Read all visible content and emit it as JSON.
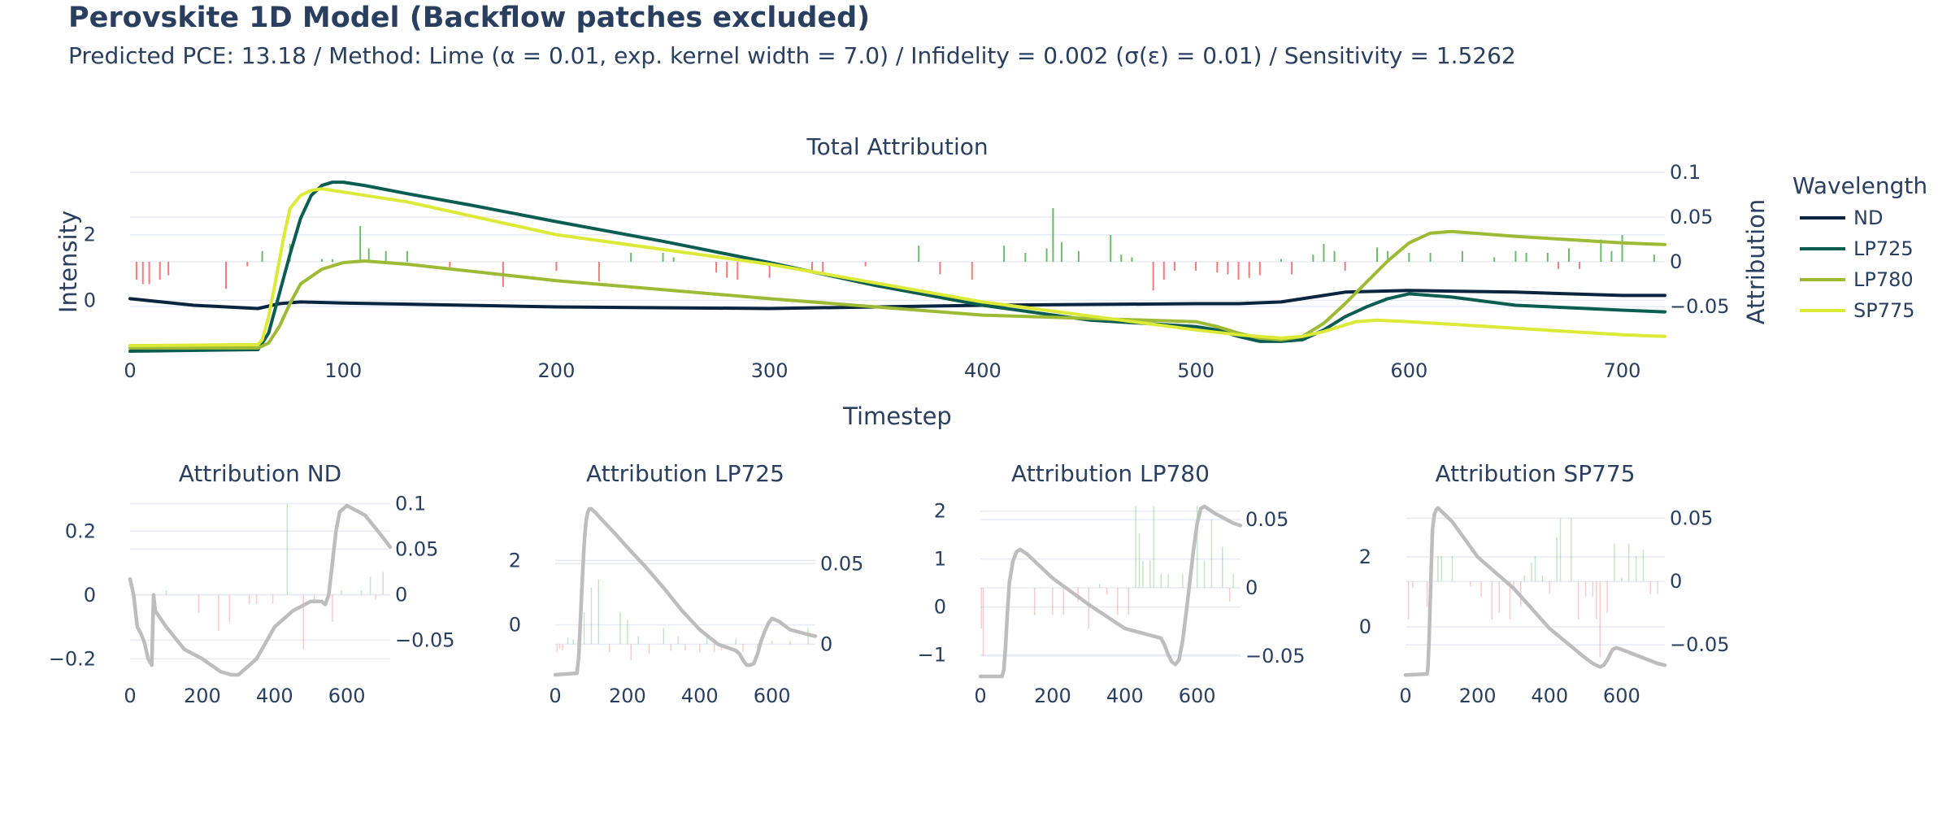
{
  "title": "Perovskite 1D Model (Backflow patches excluded)",
  "subtitle": "Predicted PCE: 13.18 / Method: Lime (α = 0.01, exp. kernel width = 7.0) / Infidelity = 0.002 (σ(ε) = 0.01) / Sensitivity = 1.5262",
  "colors": {
    "ND": "#0a2540",
    "LP725": "#0b5d52",
    "LP780": "#9dba35",
    "SP775": "#dcea37",
    "positive_attr": "#5cb35c",
    "negative_attr": "#f26b6b",
    "overlay_line": "#bdbdbd",
    "grid": "#e6ebf3"
  },
  "chart_data": [
    {
      "type": "line",
      "id": "main",
      "title": "Total Attribution",
      "xlabel": "Timestep",
      "ylabel": "Intensity",
      "y2label": "Attribution",
      "xlim": [
        0,
        720
      ],
      "ylim": [
        -1.55,
        3.9
      ],
      "y2lim": [
        -0.1,
        0.1
      ],
      "xticks": [
        0,
        100,
        200,
        300,
        400,
        500,
        600,
        700
      ],
      "yticks": [
        0,
        2
      ],
      "y2ticks": [
        -0.05,
        0,
        0.05,
        0.1
      ],
      "legend_title": "Wavelength",
      "legend_position": "right",
      "series": [
        {
          "name": "ND",
          "x": [
            0,
            30,
            60,
            70,
            80,
            100,
            200,
            300,
            400,
            500,
            520,
            540,
            550,
            570,
            600,
            650,
            700,
            720
          ],
          "y": [
            0.05,
            -0.15,
            -0.25,
            -0.1,
            -0.05,
            -0.08,
            -0.2,
            -0.25,
            -0.15,
            -0.1,
            -0.1,
            -0.05,
            0.05,
            0.25,
            0.3,
            0.25,
            0.15,
            0.15
          ]
        },
        {
          "name": "LP725",
          "x": [
            0,
            60,
            65,
            70,
            75,
            80,
            85,
            90,
            95,
            100,
            110,
            130,
            160,
            200,
            250,
            300,
            350,
            400,
            450,
            500,
            510,
            520,
            530,
            540,
            550,
            560,
            570,
            580,
            590,
            600,
            620,
            650,
            700,
            720
          ],
          "y": [
            -1.55,
            -1.5,
            -1.0,
            0.2,
            1.4,
            2.5,
            3.2,
            3.5,
            3.6,
            3.6,
            3.5,
            3.25,
            2.9,
            2.4,
            1.8,
            1.15,
            0.45,
            -0.15,
            -0.6,
            -0.8,
            -0.9,
            -1.1,
            -1.25,
            -1.25,
            -1.2,
            -0.9,
            -0.5,
            -0.2,
            0.05,
            0.2,
            0.1,
            -0.15,
            -0.3,
            -0.35
          ]
        },
        {
          "name": "LP780",
          "x": [
            0,
            60,
            65,
            70,
            75,
            80,
            90,
            100,
            110,
            130,
            200,
            300,
            400,
            500,
            510,
            520,
            530,
            540,
            550,
            560,
            570,
            580,
            590,
            600,
            610,
            620,
            650,
            700,
            720
          ],
          "y": [
            -1.45,
            -1.45,
            -1.3,
            -0.8,
            -0.1,
            0.5,
            0.95,
            1.15,
            1.2,
            1.1,
            0.6,
            0.05,
            -0.45,
            -0.65,
            -0.8,
            -1.0,
            -1.15,
            -1.2,
            -1.1,
            -0.7,
            -0.1,
            0.55,
            1.2,
            1.75,
            2.05,
            2.1,
            1.95,
            1.75,
            1.7
          ]
        },
        {
          "name": "SP775",
          "x": [
            0,
            60,
            62,
            65,
            68,
            70,
            72,
            75,
            80,
            85,
            90,
            100,
            130,
            200,
            300,
            400,
            500,
            520,
            540,
            550,
            560,
            570,
            575,
            585,
            600,
            650,
            700,
            720
          ],
          "y": [
            -1.38,
            -1.35,
            -1.2,
            -0.5,
            0.5,
            1.2,
            1.9,
            2.8,
            3.2,
            3.35,
            3.4,
            3.3,
            3.0,
            2.0,
            1.1,
            -0.05,
            -0.9,
            -1.05,
            -1.15,
            -1.1,
            -0.95,
            -0.75,
            -0.65,
            -0.6,
            -0.65,
            -0.85,
            -1.05,
            -1.1
          ]
        }
      ],
      "attribution_bars": {
        "x": [
          3,
          6,
          9,
          14,
          18,
          45,
          55,
          62,
          75,
          90,
          95,
          108,
          112,
          120,
          130,
          150,
          175,
          200,
          220,
          235,
          250,
          255,
          275,
          280,
          285,
          300,
          320,
          325,
          345,
          370,
          380,
          395,
          410,
          420,
          430,
          433,
          437,
          445,
          460,
          465,
          470,
          480,
          485,
          490,
          500,
          510,
          515,
          520,
          525,
          530,
          540,
          545,
          555,
          560,
          565,
          570,
          585,
          590,
          600,
          610,
          625,
          640,
          650,
          655,
          665,
          670,
          675,
          680,
          690,
          695,
          700,
          715
        ],
        "y": [
          -0.02,
          -0.025,
          -0.025,
          -0.02,
          -0.015,
          -0.03,
          -0.005,
          0.012,
          0.02,
          0.003,
          0.003,
          0.04,
          0.015,
          0.012,
          0.012,
          -0.006,
          -0.028,
          -0.01,
          -0.022,
          0.01,
          0.01,
          0.005,
          -0.012,
          -0.018,
          -0.02,
          -0.018,
          -0.012,
          -0.015,
          -0.005,
          0.018,
          -0.014,
          -0.02,
          0.018,
          0.01,
          0.015,
          0.06,
          0.022,
          0.012,
          0.03,
          0.008,
          0.005,
          -0.032,
          -0.02,
          -0.01,
          -0.01,
          -0.012,
          -0.014,
          -0.02,
          -0.018,
          -0.015,
          0.003,
          -0.014,
          0.008,
          0.02,
          0.012,
          -0.01,
          0.016,
          0.012,
          0.01,
          0.01,
          0.012,
          0.005,
          0.012,
          0.01,
          0.01,
          -0.008,
          0.015,
          -0.008,
          0.025,
          0.012,
          0.03,
          0.008
        ]
      }
    },
    {
      "type": "line",
      "id": "nd",
      "title": "Attribution ND",
      "xlim": [
        0,
        720
      ],
      "ylim": [
        -0.255,
        0.3
      ],
      "y2lim": [
        -0.09,
        0.105
      ],
      "xticks": [
        0,
        200,
        400,
        600
      ],
      "yticks": [
        -0.2,
        0,
        0.2
      ],
      "y2ticks": [
        -0.05,
        0,
        0.05,
        0.1
      ],
      "series": [
        {
          "name": "ND",
          "x": [
            0,
            10,
            20,
            30,
            40,
            50,
            60,
            65,
            70,
            100,
            150,
            200,
            250,
            280,
            300,
            350,
            400,
            450,
            500,
            520,
            530,
            540,
            550,
            560,
            570,
            580,
            600,
            650,
            700,
            720
          ],
          "y": [
            0.05,
            0.0,
            -0.1,
            -0.12,
            -0.15,
            -0.2,
            -0.22,
            0.0,
            -0.05,
            -0.1,
            -0.17,
            -0.2,
            -0.24,
            -0.25,
            -0.25,
            -0.2,
            -0.1,
            -0.05,
            -0.02,
            -0.02,
            -0.02,
            -0.03,
            0.0,
            0.1,
            0.2,
            0.26,
            0.28,
            0.25,
            0.18,
            0.15
          ]
        }
      ],
      "attribution_bars": {
        "x": [
          100,
          190,
          245,
          275,
          330,
          350,
          395,
          435,
          480,
          510,
          560,
          585,
          640,
          665,
          680,
          700
        ],
        "y": [
          0.005,
          -0.02,
          -0.04,
          -0.03,
          -0.01,
          -0.01,
          -0.01,
          0.1,
          -0.06,
          -0.01,
          -0.03,
          0.005,
          0.005,
          0.02,
          -0.005,
          0.025
        ]
      }
    },
    {
      "type": "line",
      "id": "lp725",
      "title": "Attribution LP725",
      "xlim": [
        0,
        720
      ],
      "ylim": [
        -1.6,
        3.9
      ],
      "y2lim": [
        -0.02,
        0.09
      ],
      "xticks": [
        0,
        200,
        400,
        600
      ],
      "yticks": [
        0,
        2
      ],
      "y2ticks": [
        0,
        0.05
      ],
      "series": [
        {
          "name": "LP725",
          "x": [
            0,
            60,
            65,
            70,
            75,
            80,
            85,
            90,
            95,
            100,
            110,
            130,
            160,
            200,
            250,
            300,
            350,
            400,
            450,
            500,
            510,
            520,
            530,
            540,
            550,
            560,
            570,
            580,
            590,
            600,
            620,
            650,
            700,
            720
          ],
          "y": [
            -1.55,
            -1.5,
            -1.0,
            0.2,
            1.4,
            2.5,
            3.2,
            3.5,
            3.6,
            3.6,
            3.5,
            3.25,
            2.9,
            2.4,
            1.8,
            1.15,
            0.45,
            -0.15,
            -0.6,
            -0.8,
            -0.9,
            -1.1,
            -1.25,
            -1.25,
            -1.2,
            -0.9,
            -0.5,
            -0.2,
            0.05,
            0.2,
            0.1,
            -0.15,
            -0.3,
            -0.35
          ]
        },
        {
          "name": "attribution_overlay_note",
          "x": [],
          "y": []
        }
      ],
      "attribution_bars": {
        "x": [
          5,
          12,
          20,
          35,
          50,
          80,
          100,
          120,
          150,
          180,
          200,
          210,
          230,
          260,
          300,
          320,
          340,
          360,
          400,
          420,
          440,
          460,
          500,
          520,
          560,
          600,
          650,
          700
        ],
        "y": [
          -0.005,
          -0.003,
          -0.004,
          0.004,
          0.003,
          0.02,
          0.035,
          0.04,
          -0.005,
          0.02,
          0.015,
          -0.01,
          0.005,
          -0.006,
          0.01,
          -0.004,
          0.005,
          -0.004,
          -0.005,
          0.004,
          -0.005,
          -0.004,
          0.003,
          -0.005,
          -0.004,
          0.002,
          0.002,
          0.01
        ]
      }
    },
    {
      "type": "line",
      "id": "lp780",
      "title": "Attribution LP780",
      "xlim": [
        0,
        720
      ],
      "ylim": [
        -1.45,
        2.25
      ],
      "y2lim": [
        -0.065,
        0.065
      ],
      "xticks": [
        0,
        200,
        400,
        600
      ],
      "yticks": [
        -1,
        0,
        1,
        2
      ],
      "y2ticks": [
        -0.05,
        0,
        0.05
      ],
      "series": [
        {
          "name": "LP780",
          "x": [
            0,
            60,
            65,
            70,
            75,
            80,
            90,
            100,
            110,
            130,
            200,
            300,
            400,
            500,
            510,
            520,
            530,
            540,
            550,
            560,
            570,
            580,
            590,
            600,
            610,
            620,
            650,
            700,
            720
          ],
          "y": [
            -1.45,
            -1.45,
            -1.3,
            -0.8,
            -0.1,
            0.5,
            0.95,
            1.15,
            1.2,
            1.1,
            0.6,
            0.05,
            -0.45,
            -0.65,
            -0.8,
            -1.0,
            -1.15,
            -1.2,
            -1.1,
            -0.7,
            -0.1,
            0.55,
            1.2,
            1.75,
            2.05,
            2.1,
            1.95,
            1.75,
            1.7
          ]
        }
      ],
      "attribution_bars": {
        "x": [
          3,
          8,
          150,
          200,
          230,
          270,
          300,
          330,
          350,
          380,
          410,
          430,
          440,
          450,
          470,
          480,
          500,
          520,
          560,
          580,
          600,
          620,
          640,
          670,
          690,
          700
        ],
        "y": [
          -0.03,
          -0.05,
          -0.02,
          -0.02,
          -0.02,
          -0.01,
          -0.03,
          0.003,
          -0.005,
          -0.02,
          -0.02,
          0.06,
          0.04,
          0.02,
          0.02,
          0.06,
          0.01,
          0.01,
          0.01,
          0.01,
          0.06,
          0.02,
          0.05,
          0.03,
          -0.01,
          0.01
        ]
      }
    },
    {
      "type": "line",
      "id": "sp775",
      "title": "Attribution SP775",
      "xlim": [
        0,
        720
      ],
      "ylim": [
        -1.42,
        3.65
      ],
      "y2lim": [
        -0.075,
        0.065
      ],
      "xticks": [
        0,
        200,
        400,
        600
      ],
      "yticks": [
        0,
        2
      ],
      "y2ticks": [
        -0.05,
        0,
        0.05
      ],
      "series": [
        {
          "name": "SP775",
          "x": [
            0,
            60,
            62,
            65,
            68,
            70,
            72,
            75,
            80,
            85,
            90,
            100,
            130,
            200,
            300,
            400,
            500,
            520,
            540,
            550,
            560,
            570,
            575,
            585,
            600,
            650,
            700,
            720
          ],
          "y": [
            -1.38,
            -1.35,
            -1.2,
            -0.5,
            0.5,
            1.2,
            1.9,
            2.8,
            3.2,
            3.35,
            3.4,
            3.3,
            3.0,
            2.0,
            1.1,
            -0.05,
            -0.9,
            -1.05,
            -1.15,
            -1.1,
            -0.95,
            -0.75,
            -0.65,
            -0.6,
            -0.65,
            -0.85,
            -1.05,
            -1.1
          ]
        }
      ],
      "attribution_bars": {
        "x": [
          8,
          20,
          60,
          90,
          100,
          130,
          180,
          210,
          240,
          260,
          290,
          300,
          320,
          330,
          350,
          360,
          380,
          400,
          420,
          430,
          460,
          480,
          500,
          520,
          530,
          540,
          560,
          580,
          600,
          620,
          640,
          660,
          680,
          700
        ],
        "y": [
          -0.03,
          -0.005,
          -0.02,
          0.02,
          0.02,
          0.02,
          -0.004,
          -0.012,
          -0.03,
          -0.025,
          -0.03,
          -0.005,
          -0.02,
          0.005,
          0.015,
          0.02,
          0.005,
          -0.01,
          0.035,
          0.05,
          0.05,
          -0.03,
          -0.012,
          -0.012,
          -0.03,
          -0.06,
          -0.025,
          0.03,
          0.003,
          0.03,
          0.02,
          0.025,
          -0.01,
          -0.01
        ]
      }
    }
  ]
}
